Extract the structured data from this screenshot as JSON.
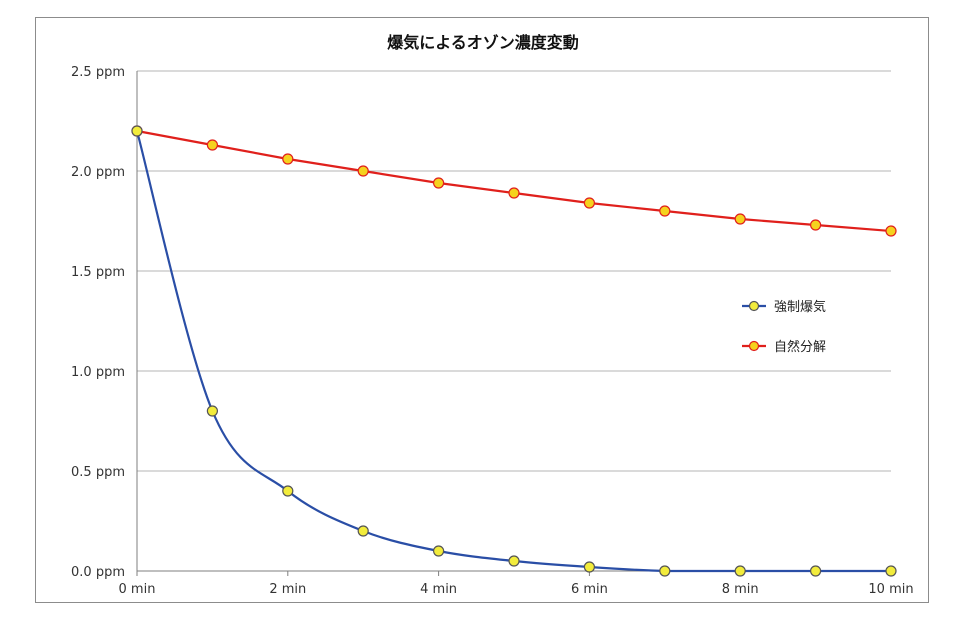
{
  "chart_data": {
    "type": "line",
    "title": "爆気によるオゾン濃度変動",
    "xlabel": "",
    "ylabel": "",
    "x": [
      0,
      1,
      2,
      3,
      4,
      5,
      6,
      7,
      8,
      9,
      10
    ],
    "x_tick_labels": [
      "0 min",
      "2 min",
      "4 min",
      "6 min",
      "8 min",
      "10 min"
    ],
    "x_tick_values": [
      0,
      2,
      4,
      6,
      8,
      10
    ],
    "y_tick_labels": [
      "0.0 ppm",
      "0.5 ppm",
      "1.0 ppm",
      "1.5 ppm",
      "2.0 ppm",
      "2.5 ppm"
    ],
    "y_tick_values": [
      0,
      0.5,
      1.0,
      1.5,
      2.0,
      2.5
    ],
    "xlim": [
      0,
      10
    ],
    "ylim": [
      0,
      2.5
    ],
    "grid": "horizontal",
    "legend_position": "right",
    "series": [
      {
        "name": "強制爆気",
        "color": "#2a4ea6",
        "marker_fill": "#f2ec3c",
        "smooth": true,
        "values": [
          2.2,
          0.8,
          0.4,
          0.2,
          0.1,
          0.05,
          0.02,
          0.0,
          0.0,
          0.0,
          0.0
        ]
      },
      {
        "name": "自然分解",
        "color": "#e0201c",
        "marker_fill": "#f5d21e",
        "smooth": false,
        "values": [
          2.2,
          2.13,
          2.06,
          2.0,
          1.94,
          1.89,
          1.84,
          1.8,
          1.76,
          1.73,
          1.7
        ]
      }
    ]
  }
}
